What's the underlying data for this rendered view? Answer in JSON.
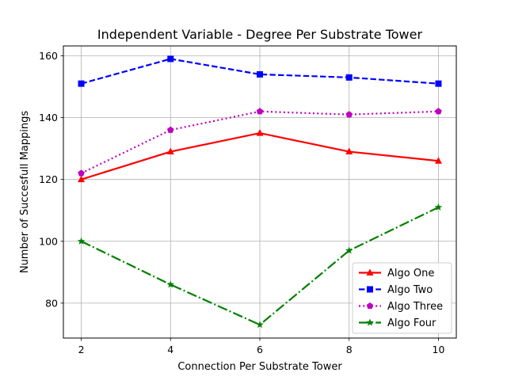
{
  "chart_data": {
    "type": "line",
    "title": "Independent Variable - Degree Per Substrate Tower",
    "xlabel": "Connection Per Substrate Tower",
    "ylabel": "Number of Succesfull Mappings",
    "x": [
      2,
      4,
      6,
      8,
      10
    ],
    "xticks": [
      "2",
      "4",
      "6",
      "8",
      "10"
    ],
    "yticks": [
      "80",
      "100",
      "120",
      "140",
      "160"
    ],
    "xlim": [
      1.6,
      10.4
    ],
    "ylim": [
      68.7,
      163.2
    ],
    "grid": true,
    "legend_position": "lower-right",
    "series": [
      {
        "name": "Algo One",
        "values": [
          120,
          129,
          135,
          129,
          126
        ],
        "color": "#ff0000",
        "linestyle": "solid",
        "marker": "triangle"
      },
      {
        "name": "Algo Two",
        "values": [
          151,
          159,
          154,
          153,
          151
        ],
        "color": "#0000ff",
        "linestyle": "dashed",
        "marker": "square"
      },
      {
        "name": "Algo Three",
        "values": [
          122,
          136,
          142,
          141,
          142
        ],
        "color": "#bf00bf",
        "linestyle": "dotted",
        "marker": "pentagon"
      },
      {
        "name": "Algo Four",
        "values": [
          100,
          86,
          73,
          97,
          111
        ],
        "color": "#008000",
        "linestyle": "dashdot",
        "marker": "star"
      }
    ]
  }
}
